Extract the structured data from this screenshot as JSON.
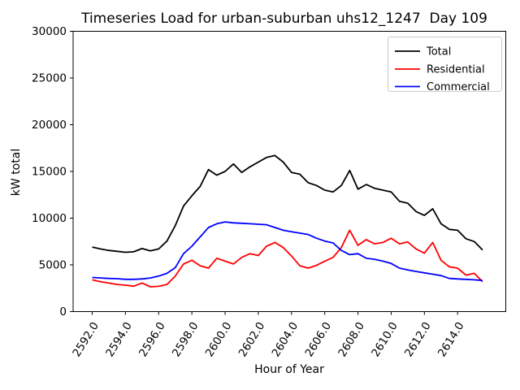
{
  "chart_data": {
    "type": "line",
    "title": "Timeseries Load for urban-suburban uhs12_1247  Day 109",
    "xlabel": "Hour of Year",
    "ylabel": "kW total",
    "xlim": [
      2590.85,
      2616.9
    ],
    "ylim": [
      0,
      30000
    ],
    "grid": false,
    "legend_position": "upper right",
    "background_color": "#ffffff",
    "x_ticks": {
      "values": [
        2592,
        2594,
        2596,
        2598,
        2600,
        2602,
        2604,
        2606,
        2608,
        2610,
        2612,
        2614
      ],
      "labels": [
        "2592.0",
        "2594.0",
        "2596.0",
        "2598.0",
        "2600.0",
        "2602.0",
        "2604.0",
        "2606.0",
        "2608.0",
        "2610.0",
        "2612.0",
        "2614.0"
      ],
      "rotation_deg": 58
    },
    "y_ticks": {
      "values": [
        0,
        5000,
        10000,
        15000,
        20000,
        25000,
        30000
      ],
      "labels": [
        "0",
        "5000",
        "10000",
        "15000",
        "20000",
        "25000",
        "30000"
      ]
    },
    "x": [
      2592,
      2592.5,
      2593,
      2593.5,
      2594,
      2594.5,
      2595,
      2595.5,
      2596,
      2596.5,
      2597,
      2597.5,
      2598,
      2598.5,
      2599,
      2599.5,
      2600,
      2600.5,
      2601,
      2601.5,
      2602,
      2602.5,
      2603,
      2603.5,
      2604,
      2604.5,
      2605,
      2605.5,
      2606,
      2606.5,
      2607,
      2607.5,
      2608,
      2608.5,
      2609,
      2609.5,
      2610,
      2610.5,
      2611,
      2611.5,
      2612,
      2612.5,
      2613,
      2613.5,
      2614,
      2614.5,
      2615,
      2615.5
    ],
    "series": [
      {
        "name": "Total",
        "color": "#000000",
        "values": [
          6900,
          6700,
          6550,
          6450,
          6350,
          6400,
          6750,
          6500,
          6700,
          7550,
          9200,
          11300,
          12400,
          13400,
          15200,
          14600,
          15000,
          15800,
          14900,
          15500,
          16000,
          16500,
          16700,
          16000,
          14900,
          14700,
          13800,
          13500,
          13000,
          12800,
          13500,
          15100,
          13100,
          13600,
          13200,
          13000,
          12800,
          11800,
          11600,
          10700,
          10300,
          11000,
          9400,
          8800,
          8700,
          7800,
          7500,
          6600
        ]
      },
      {
        "name": "Residential",
        "color": "#ff0000",
        "values": [
          3400,
          3200,
          3050,
          2900,
          2830,
          2720,
          3060,
          2650,
          2700,
          2900,
          3800,
          5100,
          5500,
          4900,
          4650,
          5700,
          5400,
          5100,
          5800,
          6200,
          6000,
          7000,
          7400,
          6850,
          5950,
          4900,
          4650,
          4950,
          5400,
          5800,
          6850,
          8700,
          7100,
          7700,
          7250,
          7400,
          7850,
          7250,
          7450,
          6700,
          6250,
          7400,
          5500,
          4800,
          4650,
          3900,
          4100,
          3200
        ]
      },
      {
        "name": "Commercial",
        "color": "#0000ff",
        "values": [
          3650,
          3600,
          3550,
          3520,
          3450,
          3450,
          3500,
          3600,
          3800,
          4100,
          4700,
          6200,
          7000,
          8000,
          9000,
          9400,
          9600,
          9500,
          9450,
          9400,
          9350,
          9300,
          9000,
          8700,
          8550,
          8400,
          8250,
          7850,
          7550,
          7350,
          6550,
          6100,
          6200,
          5700,
          5600,
          5400,
          5150,
          4650,
          4450,
          4300,
          4150,
          4000,
          3850,
          3550,
          3500,
          3450,
          3400,
          3330
        ]
      }
    ]
  }
}
